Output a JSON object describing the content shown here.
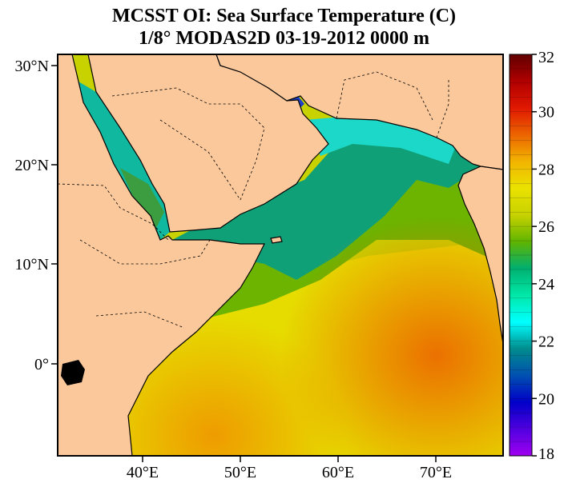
{
  "title": {
    "line1": "MCSST OI:  Sea Surface Temperature (C)",
    "line2": "1/8° MODAS2D 03-19-2012 0000 m"
  },
  "map": {
    "lat_labels": [
      "30°N",
      "20°N",
      "10°N",
      "0°"
    ],
    "lon_labels": [
      "40°E",
      "50°E",
      "60°E",
      "70°E"
    ],
    "land_color": "#FBC89B",
    "boundary_style": "dashed"
  },
  "colorbar": {
    "min": 18,
    "max": 32,
    "tick_labels": [
      "32",
      "30",
      "28",
      "26",
      "24",
      "22",
      "20",
      "18"
    ],
    "stops": [
      "#A000F0",
      "#5000E0",
      "#0000C8",
      "#0050B0",
      "#008C8C",
      "#00FFFF",
      "#00E8A8",
      "#00B070",
      "#60B400",
      "#C8D200",
      "#EAE200",
      "#F2B400",
      "#EC6400",
      "#E01800",
      "#B00000",
      "#600000"
    ]
  }
}
